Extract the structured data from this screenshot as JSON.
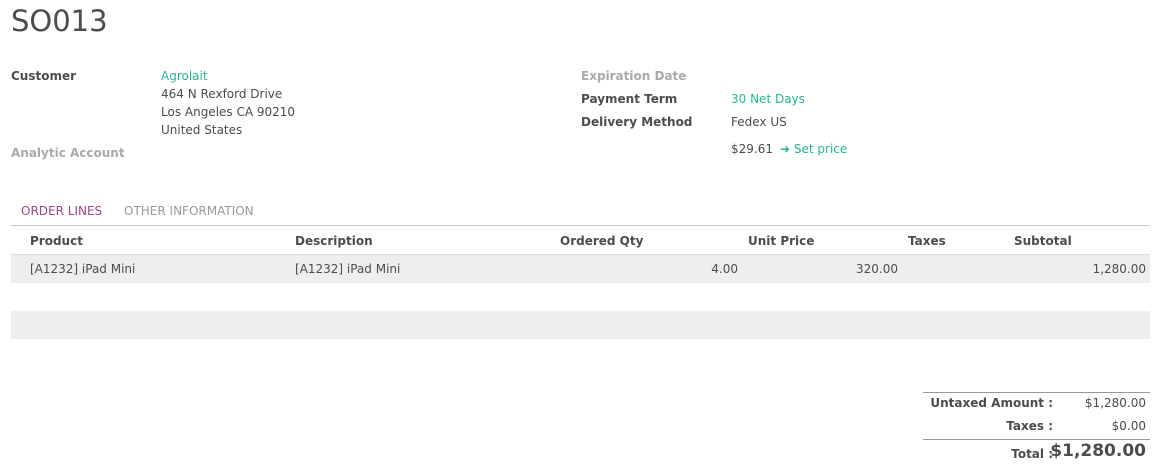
{
  "title": "SO013",
  "customer": {
    "label": "Customer",
    "name": "Agrolait",
    "address": [
      "464 N Rexford Drive",
      "Los Angeles CA 90210",
      "United States"
    ]
  },
  "analytic_account": {
    "label": "Analytic Account"
  },
  "expiration_date": {
    "label": "Expiration Date"
  },
  "payment_term": {
    "label": "Payment Term",
    "value": "30 Net Days"
  },
  "delivery_method": {
    "label": "Delivery Method",
    "value": "Fedex US",
    "price": "$29.61",
    "set_price": "Set price",
    "icon": "arrow-right-icon"
  },
  "tabs": [
    {
      "label": "ORDER LINES",
      "active": true
    },
    {
      "label": "OTHER INFORMATION",
      "active": false
    }
  ],
  "colors": {
    "link": "#21b799",
    "active_tab": "#a24689"
  },
  "table": {
    "columns": [
      "Product",
      "Description",
      "Ordered Qty",
      "Unit Price",
      "Taxes",
      "Subtotal"
    ],
    "rows": [
      {
        "product": "[A1232] iPad Mini",
        "description": "[A1232] iPad Mini",
        "qty": "4.00",
        "unit_price": "320.00",
        "taxes": "",
        "subtotal": "1,280.00"
      }
    ]
  },
  "totals": {
    "untaxed_label": "Untaxed Amount :",
    "untaxed": "$1,280.00",
    "taxes_label": "Taxes :",
    "taxes": "$0.00",
    "total_label": "Total :",
    "total": "$1,280.00"
  }
}
